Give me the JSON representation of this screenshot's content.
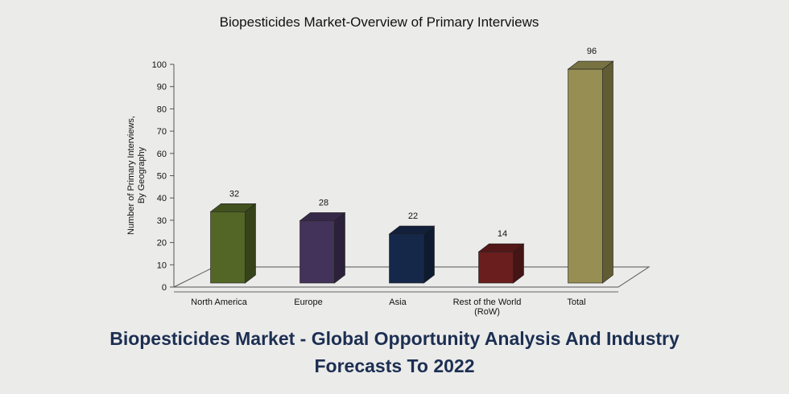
{
  "chart_data": {
    "type": "bar",
    "title": "Biopesticides Market-Overview of Primary Interviews",
    "ylabel_lines": [
      "Number of Primary Interviews,",
      "By Geography"
    ],
    "xlabel": "",
    "ylim": [
      0,
      100
    ],
    "yticks": [
      0,
      10,
      20,
      30,
      40,
      50,
      60,
      70,
      80,
      90,
      100
    ],
    "categories": [
      {
        "lines": [
          "North America"
        ]
      },
      {
        "lines": [
          "Europe"
        ]
      },
      {
        "lines": [
          "Asia"
        ]
      },
      {
        "lines": [
          "Rest of the World",
          "(RoW)"
        ]
      },
      {
        "lines": [
          "Total"
        ]
      }
    ],
    "values": [
      32,
      28,
      22,
      14,
      96
    ],
    "colors": [
      "#536626",
      "#43335a",
      "#16284a",
      "#6a1e1e",
      "#968e52"
    ],
    "grid": false,
    "style": "3d-column"
  },
  "caption": {
    "line1": "Biopesticides Market - Global Opportunity Analysis And Industry",
    "line2": "Forecasts To 2022"
  }
}
